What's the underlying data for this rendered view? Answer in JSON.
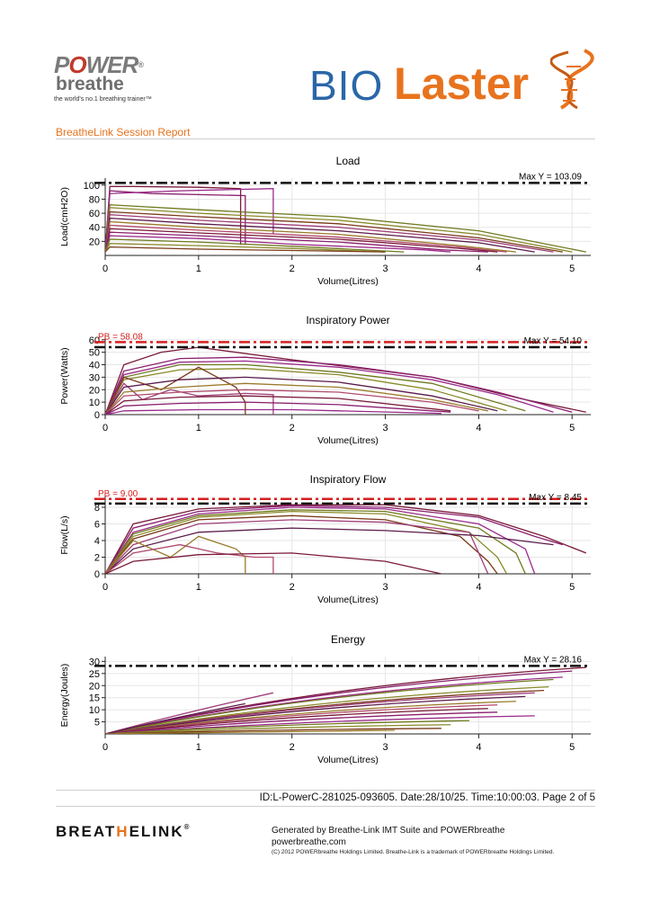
{
  "header": {
    "pb_logo": {
      "power_pre": "P",
      "power_o": "O",
      "power_post": "WER",
      "reg": "®",
      "breathe": "breathe",
      "tagline": "the world's no.1 breathing trainer™"
    },
    "biolaster": {
      "bio": "BIO",
      "laser": "Laster"
    },
    "report_title": "BreatheLink Session Report"
  },
  "footer": {
    "id_line": "ID:L-PowerC-281025-093605.  Date:28/10/25.  Time:10:00:03.   Page 2 of 5",
    "breathelink_logo": {
      "pre": "BREAT",
      "h": "H",
      "post": "ELINK",
      "reg": "®"
    },
    "generated": "Generated by Breathe-Link IMT Suite and POWERbreathe",
    "website": "powerbreathe.com",
    "copyright": "(C) 2012 POWERbreathe Holdings Limited. Breathe-Link is a trademark of POWERbreathe Holdings Limited."
  },
  "colors": {
    "ref_black": "#111111",
    "ref_red": "#d62020",
    "palette": [
      "#7a1a3a",
      "#8b1f6e",
      "#9a2a8a",
      "#6f7a1e",
      "#8a8a2a",
      "#7a3a1a",
      "#a0407a",
      "#5a1a4a",
      "#9a7a2a",
      "#b04a6a"
    ]
  },
  "chart_data": [
    {
      "type": "line",
      "id": "load",
      "title": "Load",
      "xlabel": "Volume(Litres)",
      "ylabel": "Load(cmH2O)",
      "xlim": [
        0,
        5.2
      ],
      "ylim": [
        0,
        110
      ],
      "xticks": [
        "0",
        "1",
        "2",
        "3",
        "4",
        "5"
      ],
      "yticks": [
        "20",
        "40",
        "60",
        "80",
        "100"
      ],
      "max_label": "Max Y = 103.09",
      "max_y": 103.09,
      "series": [
        {
          "name": "b1",
          "x": [
            0,
            0.05,
            0.3,
            1.0,
            1.45,
            1.45
          ],
          "y": [
            5,
            98,
            98,
            97,
            95,
            15
          ]
        },
        {
          "name": "b2",
          "x": [
            0,
            0.05,
            0.5,
            1.5,
            1.5
          ],
          "y": [
            5,
            92,
            88,
            85,
            15
          ]
        },
        {
          "name": "b3",
          "x": [
            0,
            0.05,
            0.8,
            1.8,
            1.8
          ],
          "y": [
            5,
            88,
            92,
            95,
            30
          ]
        },
        {
          "name": "b4",
          "x": [
            0,
            0.05,
            1.0,
            2.5,
            4.0,
            5.15
          ],
          "y": [
            5,
            72,
            65,
            55,
            35,
            5
          ]
        },
        {
          "name": "b5",
          "x": [
            0,
            0.05,
            1.0,
            2.5,
            4.0,
            5.0
          ],
          "y": [
            5,
            68,
            60,
            50,
            30,
            5
          ]
        },
        {
          "name": "b6",
          "x": [
            0,
            0.05,
            1.0,
            2.5,
            4.0,
            4.9
          ],
          "y": [
            5,
            62,
            55,
            45,
            25,
            5
          ]
        },
        {
          "name": "b7",
          "x": [
            0,
            0.05,
            1.0,
            2.5,
            4.0,
            4.8
          ],
          "y": [
            5,
            58,
            50,
            40,
            22,
            5
          ]
        },
        {
          "name": "b8",
          "x": [
            0,
            0.05,
            1.0,
            2.5,
            4.0,
            4.6
          ],
          "y": [
            5,
            53,
            45,
            35,
            18,
            5
          ]
        },
        {
          "name": "b9",
          "x": [
            0,
            0.05,
            1.0,
            2.5,
            3.8,
            4.4
          ],
          "y": [
            5,
            48,
            40,
            30,
            14,
            5
          ]
        },
        {
          "name": "b10",
          "x": [
            0,
            0.05,
            1.0,
            2.5,
            3.8,
            4.3
          ],
          "y": [
            5,
            43,
            36,
            26,
            12,
            5
          ]
        },
        {
          "name": "b11",
          "x": [
            0,
            0.05,
            1.0,
            2.5,
            3.8,
            4.2
          ],
          "y": [
            5,
            38,
            32,
            23,
            10,
            5
          ]
        },
        {
          "name": "b12",
          "x": [
            0,
            0.05,
            1.0,
            2.5,
            3.6,
            4.1
          ],
          "y": [
            5,
            33,
            28,
            19,
            8,
            5
          ]
        },
        {
          "name": "b13",
          "x": [
            0,
            0.05,
            1.0,
            2.0,
            3.4,
            3.7
          ],
          "y": [
            5,
            28,
            24,
            16,
            8,
            5
          ]
        },
        {
          "name": "b14",
          "x": [
            0,
            0.05,
            1.0,
            2.0,
            3.2
          ],
          "y": [
            5,
            23,
            19,
            13,
            5
          ]
        },
        {
          "name": "b15",
          "x": [
            0,
            0.05,
            1.0,
            2.0,
            3.0
          ],
          "y": [
            5,
            17,
            14,
            10,
            5
          ]
        },
        {
          "name": "b16",
          "x": [
            0,
            0.05,
            1.0,
            2.0,
            3.0
          ],
          "y": [
            5,
            12,
            9,
            7,
            5
          ]
        }
      ]
    },
    {
      "type": "line",
      "id": "power",
      "title": "Inspiratory Power",
      "xlabel": "Volume(Litres)",
      "ylabel": "Power(Watts)",
      "xlim": [
        0,
        5.2
      ],
      "ylim": [
        0,
        62
      ],
      "xticks": [
        "0",
        "1",
        "2",
        "3",
        "4",
        "5"
      ],
      "yticks": [
        "0",
        "10",
        "20",
        "30",
        "40",
        "50",
        "60"
      ],
      "max_label": "Max Y = 54.10",
      "max_y": 54.1,
      "pb_label": "PB = 58.08",
      "pb_y": 58.08,
      "series": [
        {
          "name": "b1",
          "x": [
            0,
            0.2,
            0.6,
            1.0,
            2.0,
            3.5,
            4.5,
            5.15
          ],
          "y": [
            0,
            40,
            50,
            54,
            44,
            30,
            12,
            2
          ]
        },
        {
          "name": "b2",
          "x": [
            0,
            0.2,
            0.8,
            1.5,
            2.5,
            3.5,
            4.2,
            5.0
          ],
          "y": [
            0,
            35,
            45,
            46,
            40,
            30,
            18,
            2
          ]
        },
        {
          "name": "b3",
          "x": [
            0,
            0.2,
            0.8,
            1.5,
            2.5,
            3.5,
            4.2,
            4.8
          ],
          "y": [
            0,
            32,
            42,
            43,
            38,
            28,
            16,
            2
          ]
        },
        {
          "name": "b4",
          "x": [
            0,
            0.2,
            0.8,
            1.5,
            2.5,
            3.5,
            4.5
          ],
          "y": [
            0,
            30,
            40,
            40,
            34,
            25,
            3
          ]
        },
        {
          "name": "b5",
          "x": [
            0,
            0.2,
            0.8,
            1.5,
            2.5,
            3.5,
            4.3
          ],
          "y": [
            0,
            28,
            36,
            37,
            32,
            20,
            3
          ]
        },
        {
          "name": "b6",
          "x": [
            0,
            0.2,
            0.6,
            1.0,
            1.4,
            1.5,
            1.5
          ],
          "y": [
            0,
            30,
            20,
            38,
            22,
            10,
            0
          ]
        },
        {
          "name": "b7",
          "x": [
            0,
            0.2,
            0.4,
            0.7,
            1.0,
            1.5,
            1.8,
            1.8
          ],
          "y": [
            0,
            25,
            12,
            20,
            15,
            17,
            16,
            0
          ]
        },
        {
          "name": "b8",
          "x": [
            0,
            0.2,
            0.8,
            1.5,
            2.5,
            3.5,
            4.2
          ],
          "y": [
            0,
            22,
            28,
            30,
            26,
            15,
            3
          ]
        },
        {
          "name": "b9",
          "x": [
            0,
            0.2,
            0.8,
            1.5,
            2.5,
            3.5,
            4.1
          ],
          "y": [
            0,
            18,
            22,
            25,
            22,
            12,
            3
          ]
        },
        {
          "name": "b10",
          "x": [
            0,
            0.2,
            0.8,
            1.5,
            2.5,
            3.5,
            4.0
          ],
          "y": [
            0,
            15,
            18,
            20,
            18,
            10,
            3
          ]
        },
        {
          "name": "b11",
          "x": [
            0,
            0.2,
            0.8,
            1.5,
            2.5,
            3.7
          ],
          "y": [
            0,
            11,
            14,
            15,
            13,
            3
          ]
        },
        {
          "name": "b12",
          "x": [
            0,
            0.2,
            0.8,
            1.5,
            2.5,
            3.7
          ],
          "y": [
            0,
            7,
            9,
            10,
            8,
            2
          ]
        },
        {
          "name": "b13",
          "x": [
            0,
            0.2,
            1.0,
            2.0,
            3.6
          ],
          "y": [
            0,
            3,
            4,
            4,
            1
          ]
        }
      ]
    },
    {
      "type": "line",
      "id": "flow",
      "title": "Inspiratory Flow",
      "xlabel": "Volume(Litres)",
      "ylabel": "Flow(L/s)",
      "xlim": [
        0,
        5.2
      ],
      "ylim": [
        0,
        9.3
      ],
      "xticks": [
        "0",
        "1",
        "2",
        "3",
        "4",
        "5"
      ],
      "yticks": [
        "0",
        "2",
        "4",
        "6",
        "8"
      ],
      "max_label": "Max Y = 8.45",
      "max_y": 8.45,
      "pb_label": "PB = 9.00",
      "pb_y": 9.0,
      "series": [
        {
          "name": "b1",
          "x": [
            0,
            0.3,
            1.0,
            2.0,
            3.0,
            4.0,
            4.7,
            5.15
          ],
          "y": [
            0,
            6,
            7.8,
            8.3,
            8.3,
            7.0,
            4.5,
            2.5
          ]
        },
        {
          "name": "b2",
          "x": [
            0,
            0.3,
            1.0,
            2.0,
            3.0,
            4.0,
            4.6,
            4.9
          ],
          "y": [
            0,
            5.5,
            7.5,
            8.2,
            8.0,
            6.8,
            4.5,
            3.5
          ]
        },
        {
          "name": "b3",
          "x": [
            0,
            0.3,
            1.0,
            2.0,
            3.0,
            4.0,
            4.5,
            4.6
          ],
          "y": [
            0,
            5.0,
            7.2,
            8.0,
            7.8,
            6.0,
            3.0,
            0
          ]
        },
        {
          "name": "b4",
          "x": [
            0,
            0.3,
            1.0,
            2.0,
            3.0,
            4.0,
            4.4,
            4.5
          ],
          "y": [
            0,
            4.8,
            7.0,
            7.7,
            7.5,
            5.5,
            2.5,
            0
          ]
        },
        {
          "name": "b5",
          "x": [
            0,
            0.3,
            1.0,
            2.0,
            3.0,
            3.9,
            4.2,
            4.3
          ],
          "y": [
            0,
            4.5,
            6.8,
            7.5,
            7.2,
            5.0,
            2.0,
            0
          ]
        },
        {
          "name": "b6",
          "x": [
            0,
            0.3,
            1.0,
            2.0,
            3.0,
            3.8,
            4.1,
            4.2
          ],
          "y": [
            0,
            4.2,
            6.5,
            7.0,
            6.5,
            4.5,
            1.5,
            0
          ]
        },
        {
          "name": "b7",
          "x": [
            0,
            0.3,
            1.0,
            2.0,
            3.0,
            3.9,
            4.1
          ],
          "y": [
            0,
            3.5,
            6.0,
            6.5,
            6.2,
            5.0,
            0
          ]
        },
        {
          "name": "b8",
          "x": [
            0,
            0.3,
            1.0,
            2.0,
            3.0,
            4.0,
            4.8
          ],
          "y": [
            0,
            3.0,
            5.0,
            5.5,
            5.2,
            4.6,
            3.5
          ]
        },
        {
          "name": "b9",
          "x": [
            0,
            0.3,
            0.7,
            1.0,
            1.4,
            1.5,
            1.5
          ],
          "y": [
            0,
            4.0,
            2.0,
            4.5,
            3.0,
            2.0,
            0
          ]
        },
        {
          "name": "b10",
          "x": [
            0,
            0.3,
            0.8,
            1.2,
            1.6,
            1.8,
            1.8
          ],
          "y": [
            0,
            2.5,
            3.5,
            2.5,
            2.0,
            2.0,
            0
          ]
        },
        {
          "name": "b11",
          "x": [
            0,
            0.3,
            1.0,
            2.0,
            3.0,
            3.6
          ],
          "y": [
            0,
            1.5,
            2.3,
            2.5,
            1.5,
            0
          ]
        }
      ]
    },
    {
      "type": "line",
      "id": "energy",
      "title": "Energy",
      "xlabel": "Volume(Litres)",
      "ylabel": "Energy(Joules)",
      "xlim": [
        0,
        5.2
      ],
      "ylim": [
        0,
        32
      ],
      "xticks": [
        "0",
        "1",
        "2",
        "3",
        "4",
        "5"
      ],
      "yticks": [
        "5",
        "10",
        "15",
        "20",
        "25",
        "30"
      ],
      "max_label": "Max Y = 28.16",
      "max_y": 28.16,
      "series": [
        {
          "name": "b1",
          "x": [
            0,
            5.15
          ],
          "y": [
            0,
            27.5
          ],
          "curve": 1.0
        },
        {
          "name": "b2",
          "x": [
            0,
            5.0
          ],
          "y": [
            0,
            26.0
          ],
          "curve": 1.0
        },
        {
          "name": "b3",
          "x": [
            0,
            4.9
          ],
          "y": [
            0,
            23.5
          ],
          "curve": 1.0
        },
        {
          "name": "b4",
          "x": [
            0,
            4.8
          ],
          "y": [
            0,
            22.5
          ],
          "curve": 1.0
        },
        {
          "name": "b5",
          "x": [
            0,
            4.75
          ],
          "y": [
            0,
            19.5
          ],
          "curve": 1.0
        },
        {
          "name": "b6",
          "x": [
            0,
            4.7
          ],
          "y": [
            0,
            18.0
          ],
          "curve": 1.0
        },
        {
          "name": "b7",
          "x": [
            0,
            4.6
          ],
          "y": [
            0,
            17.0
          ],
          "curve": 1.0
        },
        {
          "name": "b8",
          "x": [
            0,
            4.5
          ],
          "y": [
            0,
            15.5
          ],
          "curve": 1.0
        },
        {
          "name": "b9",
          "x": [
            0,
            4.4
          ],
          "y": [
            0,
            13.5
          ],
          "curve": 1.0
        },
        {
          "name": "b10",
          "x": [
            0,
            4.2
          ],
          "y": [
            0,
            12.0
          ],
          "curve": 1.0
        },
        {
          "name": "b11",
          "x": [
            0,
            4.1
          ],
          "y": [
            0,
            10.5
          ],
          "curve": 1.0
        },
        {
          "name": "b12",
          "x": [
            0,
            4.2
          ],
          "y": [
            0,
            9.0
          ],
          "curve": 1.0
        },
        {
          "name": "b13",
          "x": [
            0,
            4.6
          ],
          "y": [
            0,
            7.5
          ],
          "curve": 1.0
        },
        {
          "name": "b14",
          "x": [
            0,
            3.9
          ],
          "y": [
            0,
            5.5
          ],
          "curve": 1.0
        },
        {
          "name": "b15",
          "x": [
            0,
            3.7
          ],
          "y": [
            0,
            3.8
          ],
          "curve": 1.0
        },
        {
          "name": "b16",
          "x": [
            0,
            3.6
          ],
          "y": [
            0,
            2.3
          ],
          "curve": 1.0
        },
        {
          "name": "b17",
          "x": [
            0,
            1.8
          ],
          "y": [
            0,
            17.0
          ],
          "curve": 0.0
        },
        {
          "name": "b18",
          "x": [
            0,
            1.5
          ],
          "y": [
            0,
            12.5
          ],
          "curve": 0.0
        },
        {
          "name": "b19",
          "x": [
            0,
            3.1
          ],
          "y": [
            0,
            1.5
          ],
          "curve": 0.0
        }
      ]
    }
  ]
}
